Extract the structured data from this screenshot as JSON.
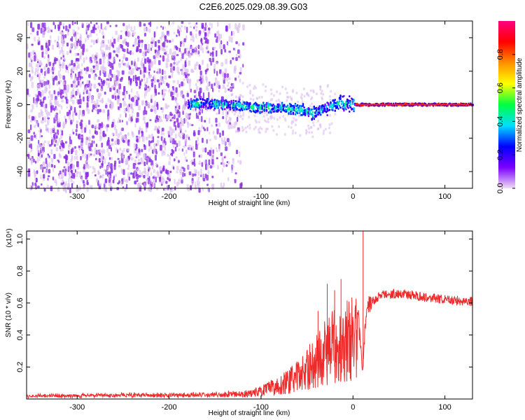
{
  "title": "C2E6.2025.029.08.39.G03",
  "chart_data": [
    {
      "type": "heatmap",
      "xlabel": "Height of straight line (km)",
      "ylabel": "Frequency (Hz)",
      "xlim": [
        -355,
        130
      ],
      "ylim": [
        -50,
        50
      ],
      "xticks": [
        -300,
        -200,
        -100,
        0,
        100
      ],
      "yticks": [
        -40,
        -20,
        0,
        20,
        40
      ],
      "colorbar": {
        "label": "Normalized spectral amplitude",
        "range": [
          0,
          1
        ],
        "ticks": [
          0.0,
          0.2,
          0.4,
          0.6,
          0.8
        ],
        "colormap": [
          "#f0ddf5",
          "#7a00ff",
          "#0000ff",
          "#00e0ff",
          "#00ff40",
          "#ffff00",
          "#ff9000",
          "#ff0000",
          "#ff0080"
        ]
      },
      "ridge": [
        {
          "x": -178,
          "f": 0
        },
        {
          "x": -160,
          "f": 1
        },
        {
          "x": -140,
          "f": 0
        },
        {
          "x": -120,
          "f": -1
        },
        {
          "x": -100,
          "f": -2
        },
        {
          "x": -80,
          "f": -2
        },
        {
          "x": -60,
          "f": -3
        },
        {
          "x": -45,
          "f": -5
        },
        {
          "x": -35,
          "f": -3
        },
        {
          "x": -25,
          "f": -1
        },
        {
          "x": -15,
          "f": 1
        },
        {
          "x": -5,
          "f": 0.5
        },
        {
          "x": 0,
          "f": 0
        },
        {
          "x": 130,
          "f": 0
        }
      ]
    },
    {
      "type": "line",
      "xlabel": "Height of straight line (km)",
      "ylabel": "SNR (10 * v/v)",
      "scale_label": "(x10⁴)",
      "xlim": [
        -355,
        130
      ],
      "ylim": [
        0,
        1.05
      ],
      "xticks": [
        -300,
        -200,
        -100,
        0,
        100
      ],
      "yticks": [
        0.2,
        0.4,
        0.6,
        0.8,
        1.0
      ],
      "ytick_labels": [
        "0.2",
        "0.4",
        "0.6",
        "0.8",
        "1.0"
      ],
      "series": [
        {
          "color": "#ee2a2a",
          "envelope": [
            {
              "x": -355,
              "v": 0.02
            },
            {
              "x": -250,
              "v": 0.025
            },
            {
              "x": -150,
              "v": 0.03
            },
            {
              "x": -120,
              "v": 0.04
            },
            {
              "x": -100,
              "v": 0.07
            },
            {
              "x": -80,
              "v": 0.12
            },
            {
              "x": -60,
              "v": 0.2
            },
            {
              "x": -45,
              "v": 0.3
            },
            {
              "x": -35,
              "v": 0.38
            },
            {
              "x": -25,
              "v": 0.45
            },
            {
              "x": -15,
              "v": 0.5
            },
            {
              "x": -5,
              "v": 0.53
            },
            {
              "x": 5,
              "v": 0.56
            },
            {
              "x": 10,
              "v": 0.2
            },
            {
              "x": 15,
              "v": 0.58
            },
            {
              "x": 30,
              "v": 0.65
            },
            {
              "x": 50,
              "v": 0.66
            },
            {
              "x": 75,
              "v": 0.64
            },
            {
              "x": 100,
              "v": 0.62
            },
            {
              "x": 130,
              "v": 0.61
            }
          ],
          "spikes": [
            {
              "x": 11,
              "v": 1.05
            },
            {
              "x": -13,
              "v": 0.75
            },
            {
              "x": -28,
              "v": 0.72
            },
            {
              "x": -20,
              "v": 0.68
            },
            {
              "x": -38,
              "v": 0.55
            }
          ]
        }
      ]
    }
  ]
}
